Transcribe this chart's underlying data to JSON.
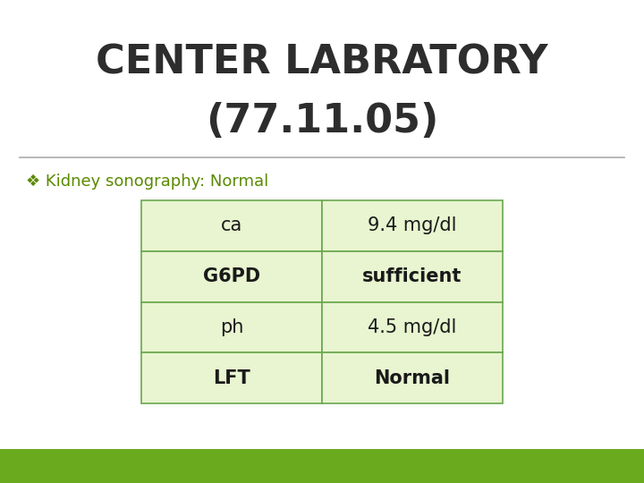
{
  "title_line1": "CENTER LABRATORY",
  "title_line2": "(77.11.05)",
  "title_color": "#2d2d2d",
  "title_fontsize": 32,
  "bullet_text": "Kidney sonography: Normal",
  "bullet_color": "#5a8a00",
  "bullet_fontsize": 13,
  "table_rows": [
    [
      "ca",
      "9.4 mg/dl"
    ],
    [
      "G6PD",
      "sufficient"
    ],
    [
      "ph",
      "4.5 mg/dl"
    ],
    [
      "LFT",
      "Normal"
    ]
  ],
  "table_cell_bg": "#e8f5d0",
  "table_border_color": "#6aa84f",
  "table_text_color": "#1a1a1a",
  "table_fontsize": 15,
  "background_color": "#ffffff",
  "bottom_bar_color": "#6aaa1e",
  "divider_color": "#aaaaaa"
}
